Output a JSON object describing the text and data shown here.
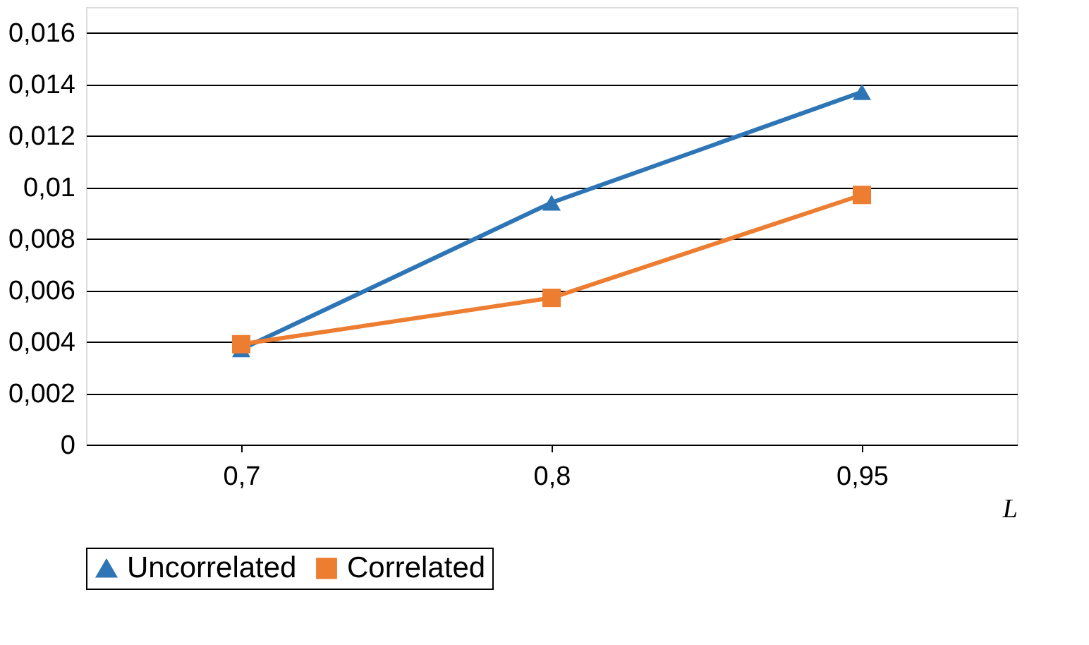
{
  "chart_data": {
    "type": "line",
    "xlabel": "L",
    "categories": [
      "0,7",
      "0,8",
      "0,95"
    ],
    "series": [
      {
        "name": "Uncorrelated",
        "color": "#2e75b6",
        "marker": "triangle",
        "values": [
          0.0037,
          0.0094,
          0.0137
        ]
      },
      {
        "name": "Correlated",
        "color": "#ed7d31",
        "marker": "square",
        "values": [
          0.0039,
          0.0057,
          0.0097
        ]
      }
    ],
    "ylim": [
      0,
      0.017
    ],
    "yticks": [
      {
        "value": 0,
        "label": "0"
      },
      {
        "value": 0.002,
        "label": "0,002"
      },
      {
        "value": 0.004,
        "label": "0,004"
      },
      {
        "value": 0.006,
        "label": "0,006"
      },
      {
        "value": 0.008,
        "label": "0,008"
      },
      {
        "value": 0.01,
        "label": "0,01"
      },
      {
        "value": 0.012,
        "label": "0,012"
      },
      {
        "value": 0.014,
        "label": "0,014"
      },
      {
        "value": 0.016,
        "label": "0,016"
      }
    ],
    "grid": "y",
    "legend": "bottom",
    "line_style": "solid"
  }
}
